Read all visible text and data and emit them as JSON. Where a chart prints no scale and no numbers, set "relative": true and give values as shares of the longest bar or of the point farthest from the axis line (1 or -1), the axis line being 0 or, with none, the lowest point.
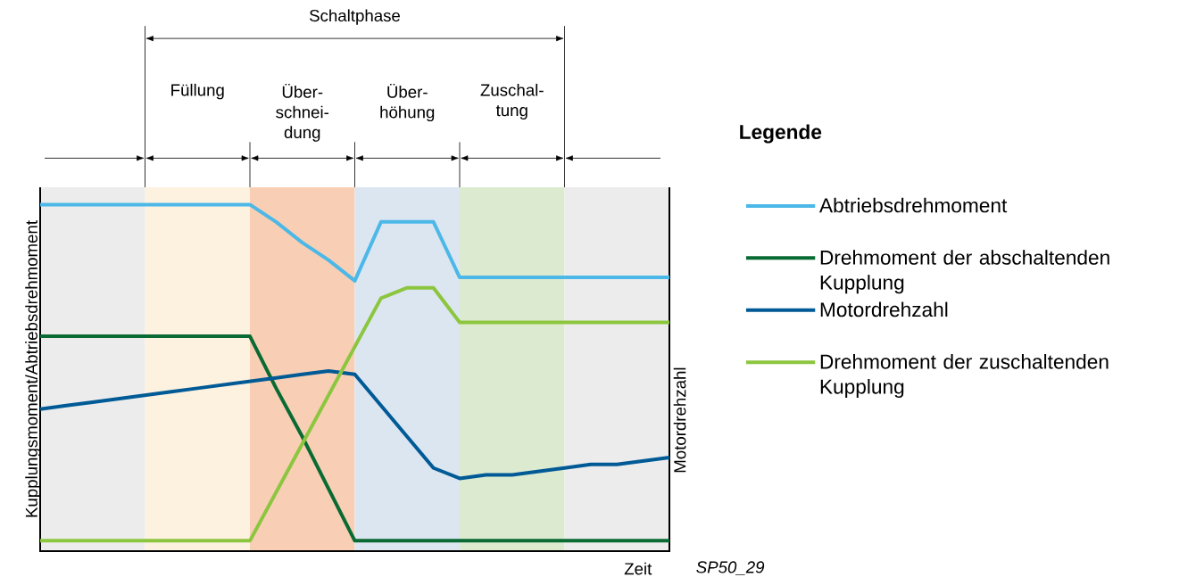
{
  "chart_data": {
    "type": "line",
    "relative": true,
    "xlabel": "Zeit",
    "ylabel": "Kupplungsmoment/Abtriebsdrehmoment",
    "y2label": "Motordrehzahl",
    "legend_title": "Legende",
    "annotations": [
      "Schaltphase",
      "Füllung",
      "Über- schnei- dung",
      "Über- höhung",
      "Zuschal- tung",
      "SP50_29"
    ],
    "categories": [
      null,
      null,
      null,
      null,
      null,
      null,
      null,
      null,
      null,
      null,
      null,
      null,
      null,
      null,
      null,
      null,
      null,
      null,
      null,
      null,
      null,
      null,
      null,
      null,
      null
    ],
    "tick_labels": false,
    "legend": "right",
    "line_style": "solid",
    "series": [
      {
        "name": "Abtriebsdrehmoment",
        "color": "#4cb8e8",
        "values": [
          1,
          1,
          1,
          1,
          1,
          1,
          1,
          1,
          1,
          0.95,
          0.89,
          0.84,
          0.78,
          0.95,
          0.95,
          0.95,
          0.79,
          0.79,
          0.79,
          0.79,
          0.79,
          0.79,
          0.79,
          0.79,
          0.79
        ]
      },
      {
        "name": "Drehmoment der abschaltenden Kupplung",
        "color": "#0a6a33",
        "values": [
          0.62,
          0.62,
          0.62,
          0.62,
          0.62,
          0.62,
          0.62,
          0.62,
          0.62,
          0.47,
          0.33,
          0.18,
          0.03,
          0.03,
          0.03,
          0.03,
          0.03,
          0.03,
          0.03,
          0.03,
          0.03,
          0.03,
          0.03,
          0.03,
          0.03
        ]
      },
      {
        "name": "Motordrehzahl",
        "color": "#005a96",
        "values": [
          0.41,
          0.42,
          0.43,
          0.44,
          0.45,
          0.46,
          0.47,
          0.48,
          0.49,
          0.5,
          0.51,
          0.52,
          0.51,
          0.42,
          0.33,
          0.24,
          0.21,
          0.22,
          0.22,
          0.23,
          0.24,
          0.25,
          0.25,
          0.26,
          0.27
        ]
      },
      {
        "name": "Drehmoment der zuschaltenden Kupplung",
        "color": "#8cc63f",
        "values": [
          0.03,
          0.03,
          0.03,
          0.03,
          0.03,
          0.03,
          0.03,
          0.03,
          0.03,
          0.17,
          0.31,
          0.45,
          0.59,
          0.73,
          0.76,
          0.76,
          0.66,
          0.66,
          0.66,
          0.66,
          0.66,
          0.66,
          0.66,
          0.66,
          0.66
        ]
      }
    ]
  }
}
